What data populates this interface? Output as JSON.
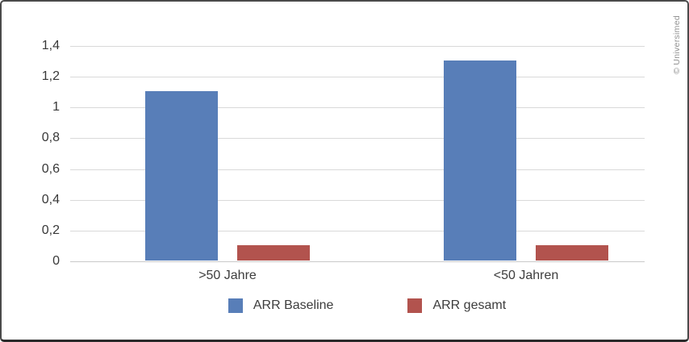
{
  "watermark": "© Universimed",
  "colors": {
    "series_blue": "#587eb8",
    "series_red": "#b2534e",
    "gridline": "#d9d9d9",
    "tick_text": "#383838"
  },
  "chart_data": {
    "type": "bar",
    "title": "",
    "xlabel": "",
    "ylabel": "",
    "categories": [
      ">50 Jahre",
      "<50 Jahren"
    ],
    "series": [
      {
        "name": "ARR Baseline",
        "color": "#587eb8",
        "values": [
          1.1,
          1.3
        ]
      },
      {
        "name": "ARR gesamt",
        "color": "#b2534e",
        "values": [
          0.1,
          0.1
        ]
      }
    ],
    "ylim": [
      0,
      1.4
    ],
    "yticks": [
      0,
      0.2,
      0.4,
      0.6,
      0.8,
      1.0,
      1.2,
      1.4
    ],
    "ytick_labels": [
      "0",
      "0,2",
      "0,4",
      "0,6",
      "0,8",
      "1",
      "1,2",
      "1,4"
    ],
    "grid": true,
    "legend_position": "bottom"
  }
}
